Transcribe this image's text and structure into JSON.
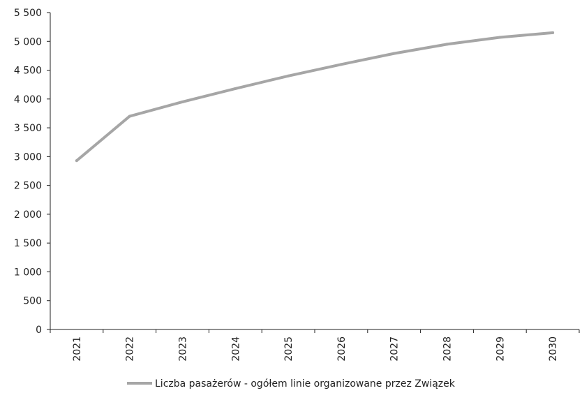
{
  "chart_data": {
    "type": "line",
    "title": "",
    "xlabel": "",
    "ylabel": "",
    "categories": [
      "2021",
      "2022",
      "2023",
      "2024",
      "2025",
      "2026",
      "2027",
      "2028",
      "2029",
      "2030"
    ],
    "series": [
      {
        "name": "Liczba pasażerów - ogółem linie organizowane przez Związek",
        "color": "#a6a6a6",
        "values": [
          2930,
          3700,
          3950,
          4180,
          4400,
          4600,
          4790,
          4950,
          5070,
          5150
        ]
      }
    ],
    "ylim": [
      0,
      5500
    ],
    "yticks": [
      0,
      500,
      1000,
      1500,
      2000,
      2500,
      3000,
      3500,
      4000,
      4500,
      5000,
      5500
    ],
    "ytick_labels": [
      "0",
      "500",
      "1 000",
      "1 500",
      "2 000",
      "2 500",
      "3 000",
      "3 500",
      "4 000",
      "4 500",
      "5 000",
      "5 500"
    ],
    "grid": false,
    "legend_position": "bottom"
  }
}
